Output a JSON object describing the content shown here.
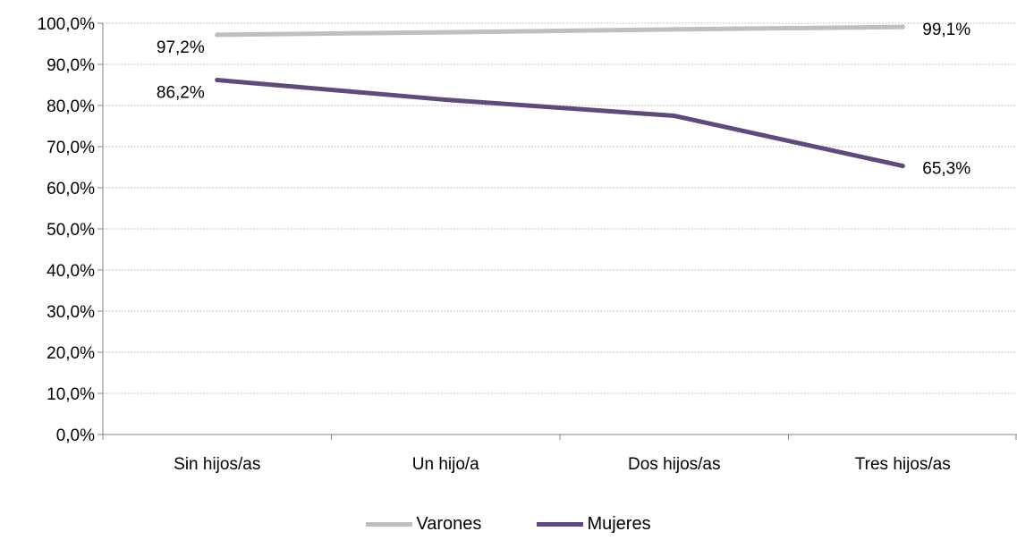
{
  "chart_data": {
    "type": "line",
    "categories": [
      "Sin hijos/as",
      "Un hijo/a",
      "Dos hijos/as",
      "Tres hijos/as"
    ],
    "series": [
      {
        "name": "Varones",
        "values": [
          97.2,
          97.8,
          98.5,
          99.1
        ],
        "color": "#bfbfbf",
        "labels": [
          "97,2%",
          "",
          "",
          "99,1%"
        ]
      },
      {
        "name": "Mujeres",
        "values": [
          86.2,
          81.4,
          77.5,
          65.3
        ],
        "color": "#604a7b",
        "labels": [
          "86,2%",
          "",
          "",
          "65,3%"
        ]
      }
    ],
    "yticks": [
      "0,0%",
      "10,0%",
      "20,0%",
      "30,0%",
      "40,0%",
      "50,0%",
      "60,0%",
      "70,0%",
      "80,0%",
      "90,0%",
      "100,0%"
    ],
    "ylim": [
      0,
      100
    ],
    "grid": true,
    "legend_position": "bottom"
  }
}
